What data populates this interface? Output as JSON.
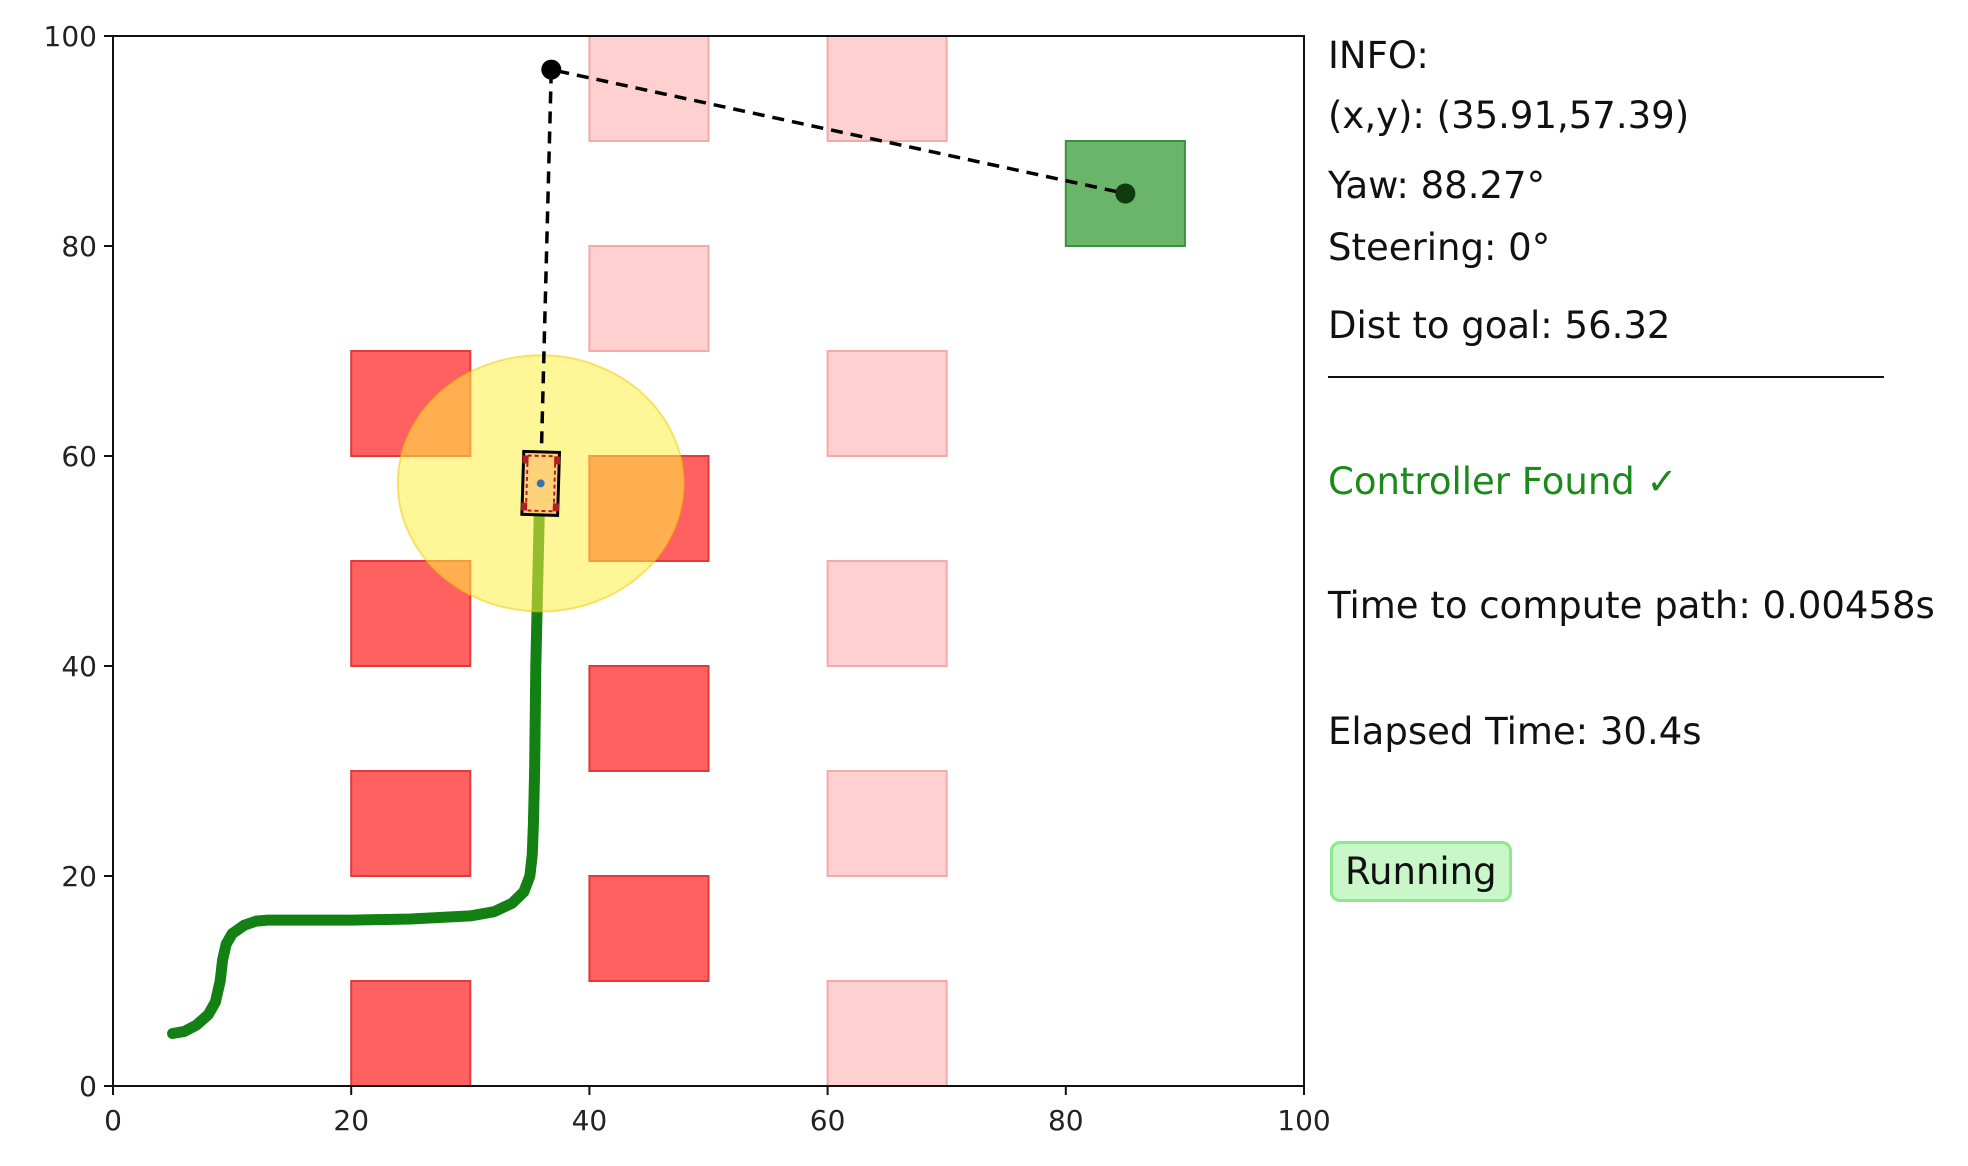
{
  "chart_data": {
    "type": "scatter",
    "xlim": [
      0,
      100
    ],
    "ylim": [
      0,
      100
    ],
    "xticks": [
      0,
      20,
      40,
      60,
      80,
      100
    ],
    "yticks": [
      0,
      20,
      40,
      60,
      80,
      100
    ],
    "x_tick_labels": [
      "0",
      "20",
      "40",
      "60",
      "80",
      "100"
    ],
    "y_tick_labels": [
      "0",
      "20",
      "40",
      "60",
      "80",
      "100"
    ],
    "grid": false,
    "obstacles_active": [
      {
        "x": 20,
        "y": 60,
        "w": 10,
        "h": 10
      },
      {
        "x": 20,
        "y": 40,
        "w": 10,
        "h": 10
      },
      {
        "x": 20,
        "y": 20,
        "w": 10,
        "h": 10
      },
      {
        "x": 20,
        "y": 0,
        "w": 10,
        "h": 10
      },
      {
        "x": 40,
        "y": 50,
        "w": 10,
        "h": 10
      },
      {
        "x": 40,
        "y": 30,
        "w": 10,
        "h": 10
      },
      {
        "x": 40,
        "y": 10,
        "w": 10,
        "h": 10
      }
    ],
    "obstacles_faded": [
      {
        "x": 40,
        "y": 90,
        "w": 10,
        "h": 10
      },
      {
        "x": 40,
        "y": 70,
        "w": 10,
        "h": 10
      },
      {
        "x": 60,
        "y": 90,
        "w": 10,
        "h": 10
      },
      {
        "x": 60,
        "y": 60,
        "w": 10,
        "h": 10
      },
      {
        "x": 60,
        "y": 40,
        "w": 10,
        "h": 10
      },
      {
        "x": 60,
        "y": 20,
        "w": 10,
        "h": 10
      },
      {
        "x": 60,
        "y": 0,
        "w": 10,
        "h": 10
      }
    ],
    "goal_region": {
      "x": 80,
      "y": 80,
      "w": 10,
      "h": 10
    },
    "goal_point": {
      "x": 85,
      "y": 85
    },
    "waypoint": {
      "x": 36.8,
      "y": 96.8
    },
    "planned_path": {
      "x": [
        35.9,
        36.8,
        85
      ],
      "y": [
        57.4,
        96.8,
        85
      ]
    },
    "trajectory": {
      "x": [
        5,
        6,
        7,
        8,
        8.6,
        9,
        9.2,
        9.5,
        10,
        11,
        12,
        13,
        15,
        20,
        25,
        30,
        32,
        33.5,
        34.5,
        35,
        35.2,
        35.3,
        35.4,
        35.5,
        35.6,
        35.7,
        35.8,
        35.9
      ],
      "y": [
        5,
        5.2,
        5.8,
        6.8,
        8,
        10,
        12,
        13.5,
        14.5,
        15.3,
        15.7,
        15.8,
        15.8,
        15.8,
        15.9,
        16.2,
        16.6,
        17.4,
        18.5,
        20,
        22,
        25,
        30,
        40,
        45,
        50,
        55,
        57.4
      ]
    },
    "sensor_range": {
      "x": 35.91,
      "y": 57.39,
      "rx": 12,
      "ry": 12.2
    },
    "vehicle": {
      "x": 35.91,
      "y": 57.39,
      "width": 3,
      "length": 6,
      "yaw_deg": 88.27
    },
    "colors": {
      "obstacle_active": "#ff6060",
      "obstacle_active_edge": "#e03a3a",
      "obstacle_faded": "#ffd0d0",
      "obstacle_faded_edge": "#f2aaaa",
      "goal_fill": "#6ab56a",
      "goal_edge": "#3c8f3c",
      "trajectory": "#138013",
      "sensor": "#ffee44",
      "path": "#000000"
    }
  },
  "info": {
    "header": "INFO:",
    "position": "(x,y): (35.91,57.39)",
    "yaw": "Yaw: 88.27°",
    "steering": "Steering: 0°",
    "dist": "Dist to goal: 56.32",
    "controller": "Controller Found ✓",
    "compute_time": "Time to compute path: 0.00458s",
    "elapsed": "Elapsed Time: 30.4s",
    "status": "Running"
  }
}
